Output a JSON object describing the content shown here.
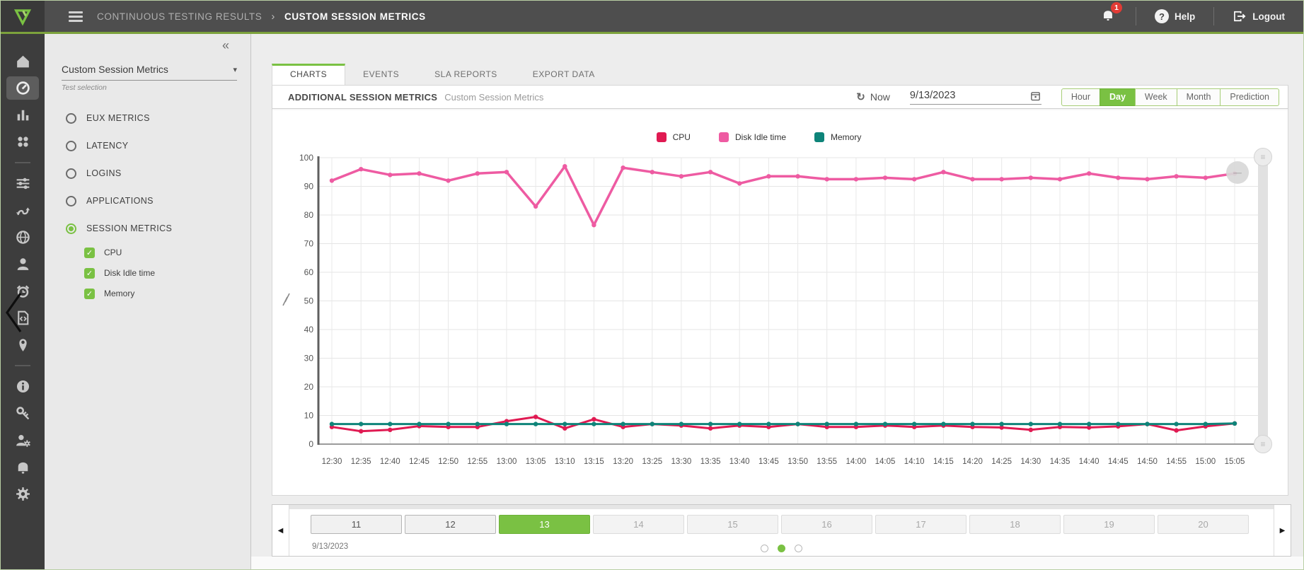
{
  "header": {
    "breadcrumb_section": "CONTINUOUS TESTING RESULTS",
    "breadcrumb_separator": "›",
    "breadcrumb_current": "CUSTOM SESSION METRICS",
    "notification_count": "1",
    "help_label": "Help",
    "logout_label": "Logout"
  },
  "rail": {
    "active": "dashboard",
    "items": [
      "home",
      "dashboard",
      "test-results",
      "applications-grid",
      "divider",
      "configuration-sliders",
      "workflow",
      "locations-globe",
      "accounts-user",
      "launchers-alarm",
      "scripts-code",
      "sites-pin",
      "divider",
      "about-info",
      "api-key",
      "admin-user-settings",
      "alerts-bell",
      "settings-gear"
    ]
  },
  "sidebar": {
    "collapse_icon": "«",
    "test_dropdown": {
      "value": "Custom Session Metrics",
      "caret": "▾",
      "label": "Test selection"
    },
    "options": [
      {
        "label": "EUX METRICS",
        "selected": false
      },
      {
        "label": "LATENCY",
        "selected": false
      },
      {
        "label": "LOGINS",
        "selected": false
      },
      {
        "label": "APPLICATIONS",
        "selected": false
      },
      {
        "label": "SESSION METRICS",
        "selected": true
      }
    ],
    "metrics": [
      {
        "label": "CPU",
        "checked": true,
        "check_glyph": "✓"
      },
      {
        "label": "Disk Idle time",
        "checked": true,
        "check_glyph": "✓"
      },
      {
        "label": "Memory",
        "checked": true,
        "check_glyph": "✓"
      }
    ]
  },
  "tabs": [
    {
      "label": "CHARTS",
      "active": true
    },
    {
      "label": "EVENTS",
      "active": false
    },
    {
      "label": "SLA REPORTS",
      "active": false
    },
    {
      "label": "EXPORT DATA",
      "active": false
    }
  ],
  "panel": {
    "title": "ADDITIONAL SESSION METRICS",
    "subtitle": "Custom Session Metrics",
    "now_label": "Now",
    "refresh_icon": "↻",
    "date_value": "9/13/2023",
    "range_buttons": [
      {
        "label": "Hour",
        "active": false
      },
      {
        "label": "Day",
        "active": true
      },
      {
        "label": "Week",
        "active": false
      },
      {
        "label": "Month",
        "active": false
      },
      {
        "label": "Prediction",
        "active": false
      }
    ],
    "zoom_out_icon": "–",
    "slider_handle_icon": "≡"
  },
  "chart_data": {
    "type": "line",
    "title": "",
    "xlabel": "",
    "ylabel": "",
    "ylim": [
      0,
      100
    ],
    "yticks": [
      0,
      10,
      20,
      30,
      40,
      50,
      60,
      70,
      80,
      90,
      100
    ],
    "grid": true,
    "legend_position": "top",
    "x": [
      "12:30",
      "12:35",
      "12:40",
      "12:45",
      "12:50",
      "12:55",
      "13:00",
      "13:05",
      "13:10",
      "13:15",
      "13:20",
      "13:25",
      "13:30",
      "13:35",
      "13:40",
      "13:45",
      "13:50",
      "13:55",
      "14:00",
      "14:05",
      "14:10",
      "14:15",
      "14:20",
      "14:25",
      "14:30",
      "14:35",
      "14:40",
      "14:45",
      "14:50",
      "14:55",
      "15:00",
      "15:05"
    ],
    "series": [
      {
        "name": "CPU",
        "color": "#e01a52",
        "values": [
          6,
          4.5,
          5,
          6.3,
          6,
          6,
          8,
          9.5,
          5.5,
          8.7,
          6,
          7,
          6.5,
          5.5,
          6.5,
          6,
          7,
          6,
          6,
          6.5,
          6,
          6.5,
          6,
          5.8,
          5,
          6,
          5.8,
          6.2,
          7,
          4.8,
          6.2,
          7.2
        ]
      },
      {
        "name": "Disk Idle time",
        "color": "#ee5ba2",
        "values": [
          92,
          96,
          94,
          94.5,
          92,
          94.5,
          95,
          83,
          97,
          76.5,
          96.5,
          95,
          93.5,
          95,
          91,
          93.5,
          93.5,
          92.5,
          92.5,
          93,
          92.5,
          95,
          92.5,
          92.5,
          93,
          92.5,
          94.5,
          93,
          92.5,
          93.5,
          93,
          94.5
        ]
      },
      {
        "name": "Memory",
        "color": "#0e8479",
        "values": [
          7,
          7,
          7,
          7,
          7,
          7,
          7,
          7,
          7,
          7,
          7,
          7,
          7,
          7,
          7,
          7,
          7,
          7,
          7,
          7,
          7,
          7,
          7,
          7,
          7,
          7,
          7,
          7,
          7,
          7,
          7,
          7.2
        ]
      }
    ]
  },
  "bottom_bar": {
    "prev_icon": "◀",
    "next_icon": "▶",
    "date_label": "9/13/2023",
    "days": [
      {
        "label": "11",
        "state": "enabled"
      },
      {
        "label": "12",
        "state": "enabled"
      },
      {
        "label": "13",
        "state": "selected"
      },
      {
        "label": "14",
        "state": "disabled"
      },
      {
        "label": "15",
        "state": "disabled"
      },
      {
        "label": "16",
        "state": "disabled"
      },
      {
        "label": "17",
        "state": "disabled"
      },
      {
        "label": "18",
        "state": "disabled"
      },
      {
        "label": "19",
        "state": "disabled"
      },
      {
        "label": "20",
        "state": "disabled"
      }
    ],
    "pager_dots": [
      {
        "active": false
      },
      {
        "active": true
      },
      {
        "active": false
      }
    ]
  },
  "colors": {
    "accent_green": "#7ac143",
    "cpu": "#e01a52",
    "disk_idle": "#ee5ba2",
    "memory": "#0e8479",
    "topbar": "#4e4e4e",
    "rail": "#3d3d3d",
    "badge_red": "#e23b35"
  }
}
